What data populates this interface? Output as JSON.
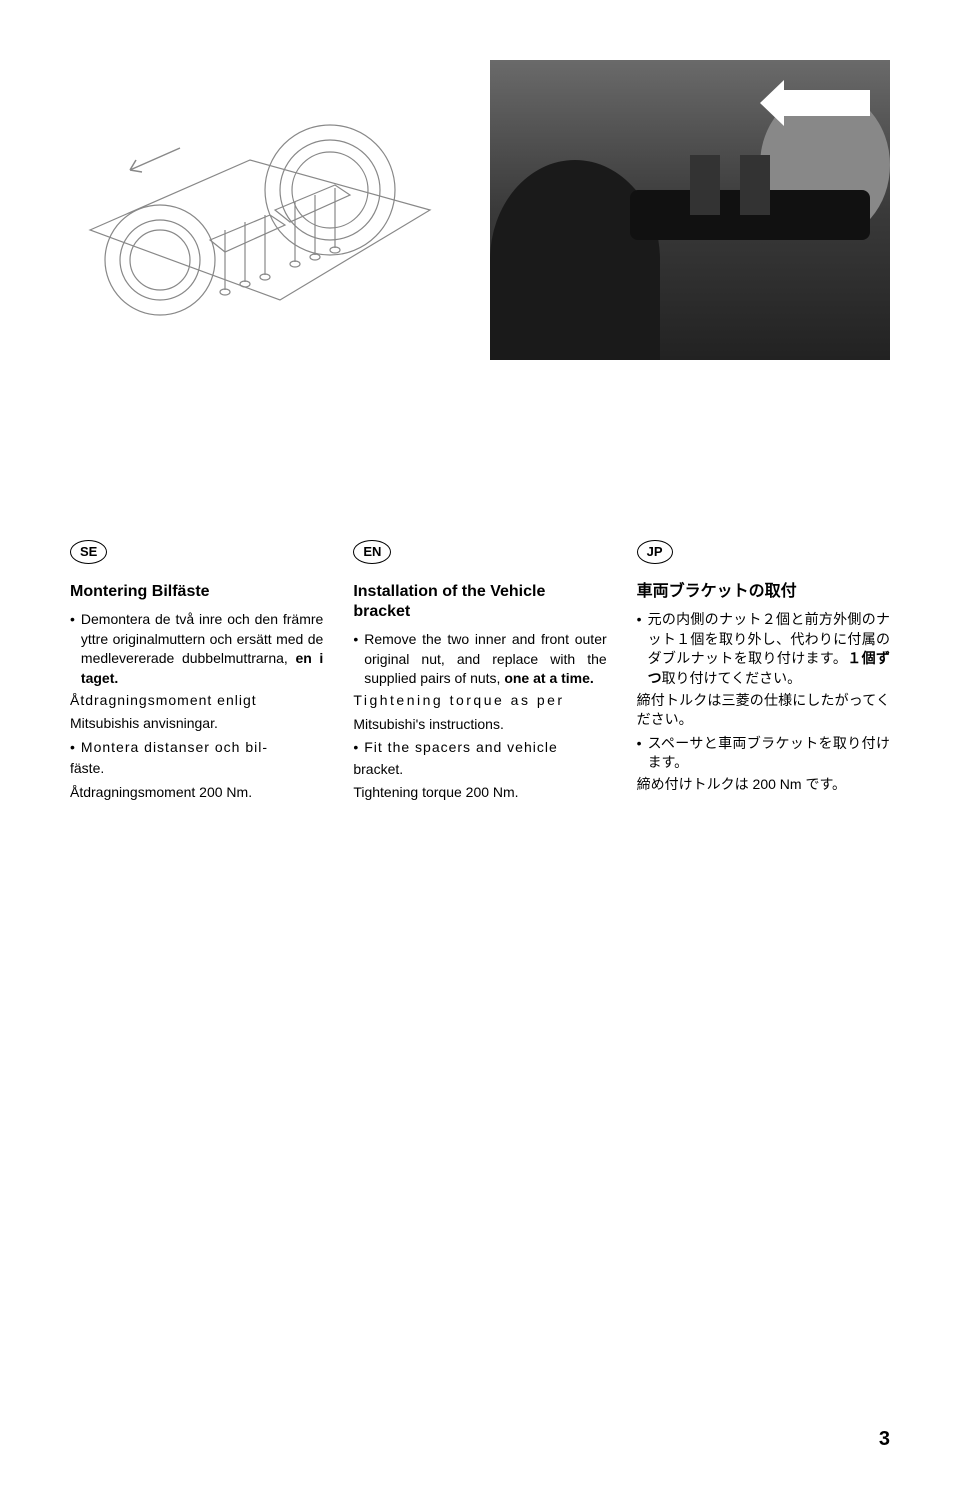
{
  "page_number": "3",
  "columns": [
    {
      "lang_code": "SE",
      "heading": "Montering Bilfäste",
      "items": [
        {
          "type": "bullet",
          "spans": [
            {
              "t": "Demontera de två inre och den främre yttre originalmuttern och ersätt med de medlevererade dubbelmuttrarna, "
            },
            {
              "t": "en i taget.",
              "bold": true
            }
          ]
        },
        {
          "type": "line",
          "spans": [
            {
              "t": "Åtdragningsmoment enligt",
              "cls": "letter-sp"
            }
          ]
        },
        {
          "type": "line",
          "spans": [
            {
              "t": "Mitsubishis anvisningar."
            }
          ]
        },
        {
          "type": "bullet",
          "spans": [
            {
              "t": "Montera distanser och bil-",
              "cls": "letter-sp"
            }
          ]
        },
        {
          "type": "line",
          "spans": [
            {
              "t": "fäste."
            }
          ]
        },
        {
          "type": "line",
          "spans": [
            {
              "t": "Åtdragningsmoment 200 Nm."
            }
          ]
        }
      ]
    },
    {
      "lang_code": "EN",
      "heading": "Installation of the Vehicle bracket",
      "items": [
        {
          "type": "bullet",
          "spans": [
            {
              "t": "Remove the two inner and front outer original nut, and replace with the supplied pairs of nuts, "
            },
            {
              "t": "one at a time.",
              "bold": true
            }
          ]
        },
        {
          "type": "line",
          "spans": [
            {
              "t": "Tightening torque as per",
              "cls": "letter-sp2"
            }
          ]
        },
        {
          "type": "line",
          "spans": [
            {
              "t": "Mitsubishi's instructions."
            }
          ]
        },
        {
          "type": "bullet",
          "spans": [
            {
              "t": "Fit the spacers and vehicle",
              "cls": "letter-sp"
            }
          ]
        },
        {
          "type": "line",
          "spans": [
            {
              "t": "bracket."
            }
          ]
        },
        {
          "type": "line",
          "spans": [
            {
              "t": "Tightening torque 200 Nm."
            }
          ]
        }
      ]
    },
    {
      "lang_code": "JP",
      "heading": "車両ブラケットの取付",
      "items": [
        {
          "type": "bullet",
          "spans": [
            {
              "t": "元の内側のナット２個と前方外側のナット１個を取り外し、代わりに付属のダブルナットを取り付けます。"
            },
            {
              "t": "１個ずつ",
              "bold": true
            },
            {
              "t": "取り付けてください。"
            }
          ]
        },
        {
          "type": "line",
          "spans": [
            {
              "t": "締付トルクは三菱の仕様にしたがってください。"
            }
          ]
        },
        {
          "type": "bullet",
          "spans": [
            {
              "t": "スペーサと車両ブラケットを取り付けます。"
            }
          ]
        },
        {
          "type": "line",
          "spans": [
            {
              "t": "締め付けトルクは 200 Nm です。"
            }
          ]
        }
      ]
    }
  ],
  "diagram": {
    "background": "#ffffff",
    "line_color": "#888888"
  },
  "photo": {
    "background": "#555555"
  }
}
